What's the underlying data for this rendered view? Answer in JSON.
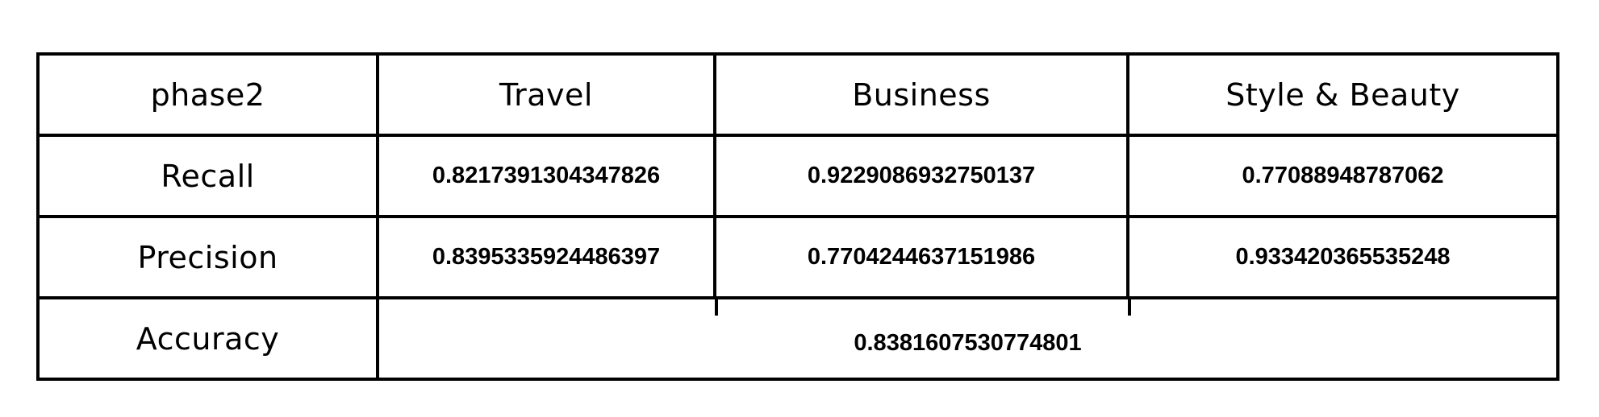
{
  "table": {
    "corner_label": "phase2",
    "columns": [
      "Travel",
      "Business",
      "Style & Beauty"
    ],
    "rows": [
      {
        "label": "Recall",
        "values": [
          "0.8217391304347826",
          "0.9229086932750137",
          "0.77088948787062"
        ]
      },
      {
        "label": "Precision",
        "values": [
          "0.8395335924486397",
          "0.7704244637151986",
          "0.933420365535248"
        ]
      }
    ],
    "accuracy": {
      "label": "Accuracy",
      "value": "0.8381607530774801"
    }
  }
}
